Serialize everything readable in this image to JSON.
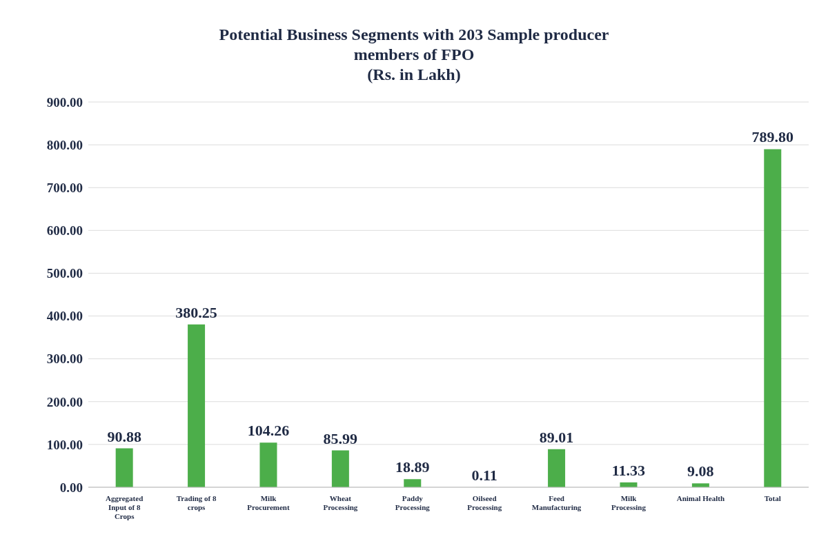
{
  "chart_data": {
    "type": "bar",
    "title": "Potential Business Segments with 203 Sample producer members of FPO",
    "subtitle": "(Rs. in Lakh)",
    "categories": [
      "Aggregated Input of 8 Crops",
      "Trading of 8 crops",
      "Milk Procurement",
      "Wheat Processing",
      "Paddy Processing",
      "Oilseed Processing",
      "Feed Manufacturing",
      "Milk Processing",
      "Animal Health",
      "Total"
    ],
    "values": [
      90.88,
      380.25,
      104.26,
      85.99,
      18.89,
      0.11,
      89.01,
      11.33,
      9.08,
      789.8
    ],
    "value_labels": [
      "90.88",
      "380.25",
      "104.26",
      "85.99",
      "18.89",
      "0.11",
      "89.01",
      "11.33",
      "9.08",
      "789.80"
    ],
    "color": "#4cae4a",
    "ylim": [
      0,
      900
    ],
    "yticks": [
      {
        "value": 0,
        "label": "0.00"
      },
      {
        "value": 100,
        "label": "100.00"
      },
      {
        "value": 200,
        "label": "200.00"
      },
      {
        "value": 300,
        "label": "300.00"
      },
      {
        "value": 400,
        "label": "400.00"
      },
      {
        "value": 500,
        "label": "500.00"
      },
      {
        "value": 600,
        "label": "600.00"
      },
      {
        "value": 700,
        "label": "700.00"
      },
      {
        "value": 800,
        "label": "800.00"
      },
      {
        "value": 900,
        "label": "900.00"
      }
    ],
    "grid": "y",
    "legend": false
  }
}
